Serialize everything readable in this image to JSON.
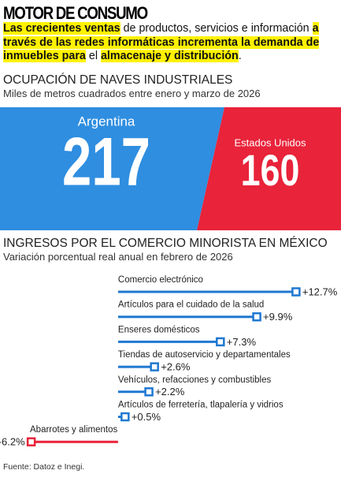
{
  "header": {
    "title": "MOTOR DE CONSUMO",
    "intro": [
      {
        "text": "Las crecientes ventas",
        "highlight": true
      },
      {
        "text": " de productos, servicios e información ",
        "highlight": false
      },
      {
        "text": "a través de las redes informáticas incrementa la demanda de inmuebles para",
        "highlight": true
      },
      {
        "text": " el ",
        "highlight": false
      },
      {
        "text": "almacenaje y distribución",
        "highlight": true
      },
      {
        "text": ".",
        "highlight": false
      }
    ]
  },
  "comparison": {
    "title": "OCUPACIÓN DE NAVES INDUSTRIALES",
    "subtitle": "Miles de metros cuadrados entre enero y marzo de 2026",
    "items": [
      {
        "name": "Argentina",
        "value": 217,
        "color": "#2f8ee0"
      },
      {
        "name": "Estados Unidos",
        "value": 160,
        "color": "#e8233a"
      }
    ]
  },
  "chart_data": {
    "type": "bar",
    "orientation": "horizontal",
    "title": "INGRESOS POR EL COMERCIO MINORISTA EN MÉXICO",
    "subtitle": "Variación porcentual real anual en febrero de 2026",
    "categories": [
      "Comercio electrónico",
      "Artículos para el cuidado de la salud",
      "Enseres domésticos",
      "Tiendas de autoservicio y departamentales",
      "Vehículos, refacciones y combustibles",
      "Artículos de ferretería, tlapalería y vidrios",
      "Abarrotes y alimentos"
    ],
    "values": [
      12.7,
      9.9,
      7.3,
      2.6,
      2.2,
      0.5,
      -6.2
    ],
    "value_labels": [
      "+12.7%",
      "+9.9%",
      "+7.3%",
      "+2.6%",
      "+2.2%",
      "+0.5%",
      "-6.2%"
    ],
    "color": "#1f78d1",
    "negative_color": "#e8233a",
    "xlim": [
      -7,
      14
    ]
  },
  "source": "Fuente: Datoz e Inegi."
}
